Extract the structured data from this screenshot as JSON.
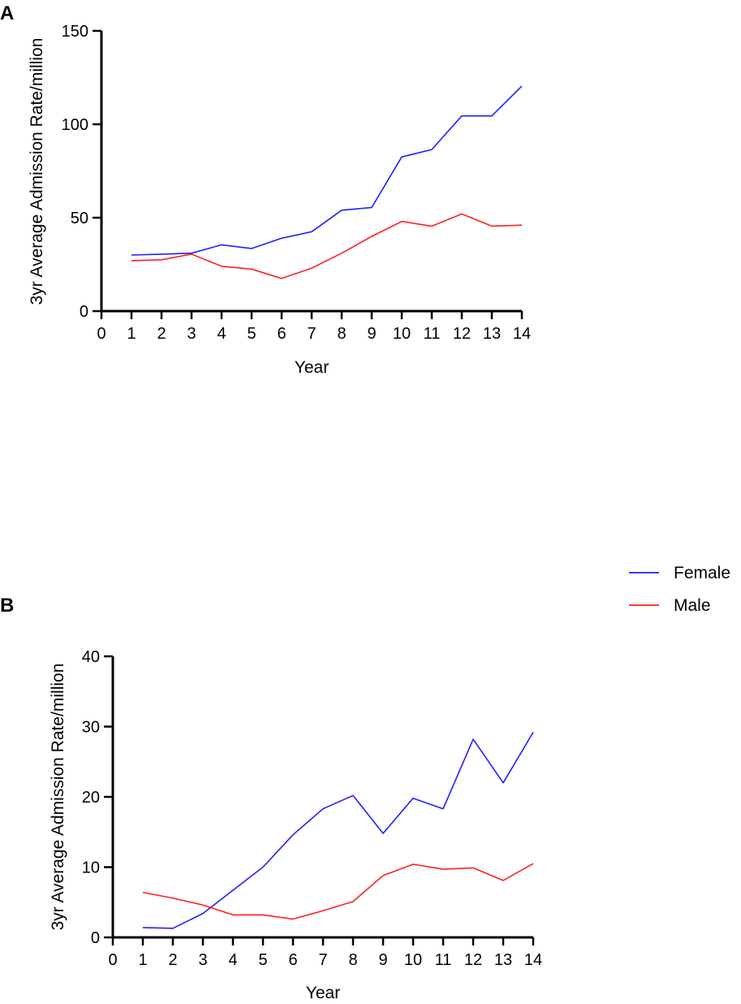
{
  "chart_data": [
    {
      "panel": "A",
      "type": "line",
      "xlabel": "Year",
      "ylabel": "3yr Average Admission Rate/million",
      "xlim": [
        0,
        14
      ],
      "ylim": [
        0,
        150
      ],
      "x_ticks": [
        0,
        1,
        2,
        3,
        4,
        5,
        6,
        7,
        8,
        9,
        10,
        11,
        12,
        13,
        14
      ],
      "y_ticks": [
        0,
        50,
        100,
        150
      ],
      "x": [
        1,
        2,
        3,
        4,
        5,
        6,
        7,
        8,
        9,
        10,
        11,
        12,
        13,
        14
      ],
      "series": [
        {
          "name": "Female",
          "color": "#1f1fff",
          "values": [
            30,
            30.5,
            31,
            35.5,
            33.5,
            39,
            42.5,
            54,
            55.5,
            82.5,
            86.5,
            104.5,
            104.5,
            120.5
          ]
        },
        {
          "name": "Male",
          "color": "#ff2020",
          "values": [
            27,
            27.5,
            30.5,
            24,
            22.5,
            17.5,
            23,
            31,
            40,
            48,
            45.5,
            52,
            45.5,
            46
          ]
        }
      ]
    },
    {
      "panel": "B",
      "type": "line",
      "xlabel": "Year",
      "ylabel": "3yr Average Admission Rate/million",
      "xlim": [
        0,
        14
      ],
      "ylim": [
        0,
        40
      ],
      "x_ticks": [
        0,
        1,
        2,
        3,
        4,
        5,
        6,
        7,
        8,
        9,
        10,
        11,
        12,
        13,
        14
      ],
      "y_ticks": [
        0,
        10,
        20,
        30,
        40
      ],
      "x": [
        1,
        2,
        3,
        4,
        5,
        6,
        7,
        8,
        9,
        10,
        11,
        12,
        13,
        14
      ],
      "series": [
        {
          "name": "Female",
          "color": "#1f1fff",
          "values": [
            1.4,
            1.3,
            3.4,
            6.7,
            10,
            14.6,
            18.3,
            20.2,
            14.8,
            19.8,
            18.3,
            28.2,
            22,
            29.2
          ]
        },
        {
          "name": "Male",
          "color": "#ff2020",
          "values": [
            6.4,
            5.6,
            4.6,
            3.2,
            3.2,
            2.6,
            3.8,
            5.1,
            8.8,
            10.4,
            9.7,
            9.9,
            8.1,
            10.5
          ]
        }
      ]
    }
  ],
  "legend": [
    {
      "label": "Female",
      "color": "#1f1fff"
    },
    {
      "label": "Male",
      "color": "#ff2020"
    }
  ]
}
